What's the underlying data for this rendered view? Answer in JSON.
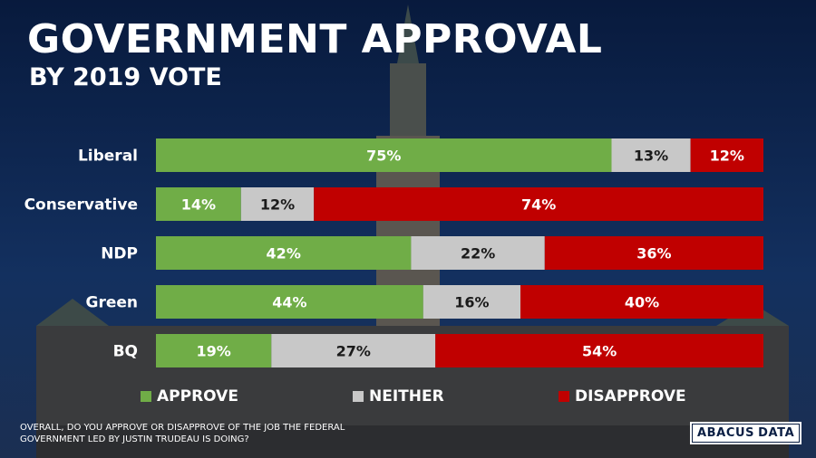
{
  "header": {
    "title": "GOVERNMENT APPROVAL",
    "subtitle": "BY 2019 VOTE"
  },
  "chart_data": {
    "type": "bar",
    "orientation": "horizontal",
    "stacked": true,
    "title": "GOVERNMENT APPROVAL",
    "subtitle": "BY 2019 VOTE",
    "categories": [
      "Liberal",
      "Conservative",
      "NDP",
      "Green",
      "BQ"
    ],
    "series": [
      {
        "name": "APPROVE",
        "color": "#70ad47",
        "values": [
          75,
          14,
          42,
          44,
          19
        ]
      },
      {
        "name": "NEITHER",
        "color": "#c8c8c8",
        "values": [
          13,
          12,
          22,
          16,
          27
        ]
      },
      {
        "name": "DISAPPROVE",
        "color": "#c00000",
        "values": [
          12,
          74,
          36,
          40,
          54
        ]
      }
    ],
    "value_suffix": "%",
    "xlim": [
      0,
      100
    ],
    "legend": "bottom"
  },
  "footer": {
    "question": "OVERALL, DO YOU  APPROVE OR DISAPPROVE OF THE JOB THE FEDERAL GOVERNMENT LED BY JUSTIN TRUDEAU IS DOING?",
    "logo_left": "ABACUS",
    "logo_right": "DATA"
  }
}
